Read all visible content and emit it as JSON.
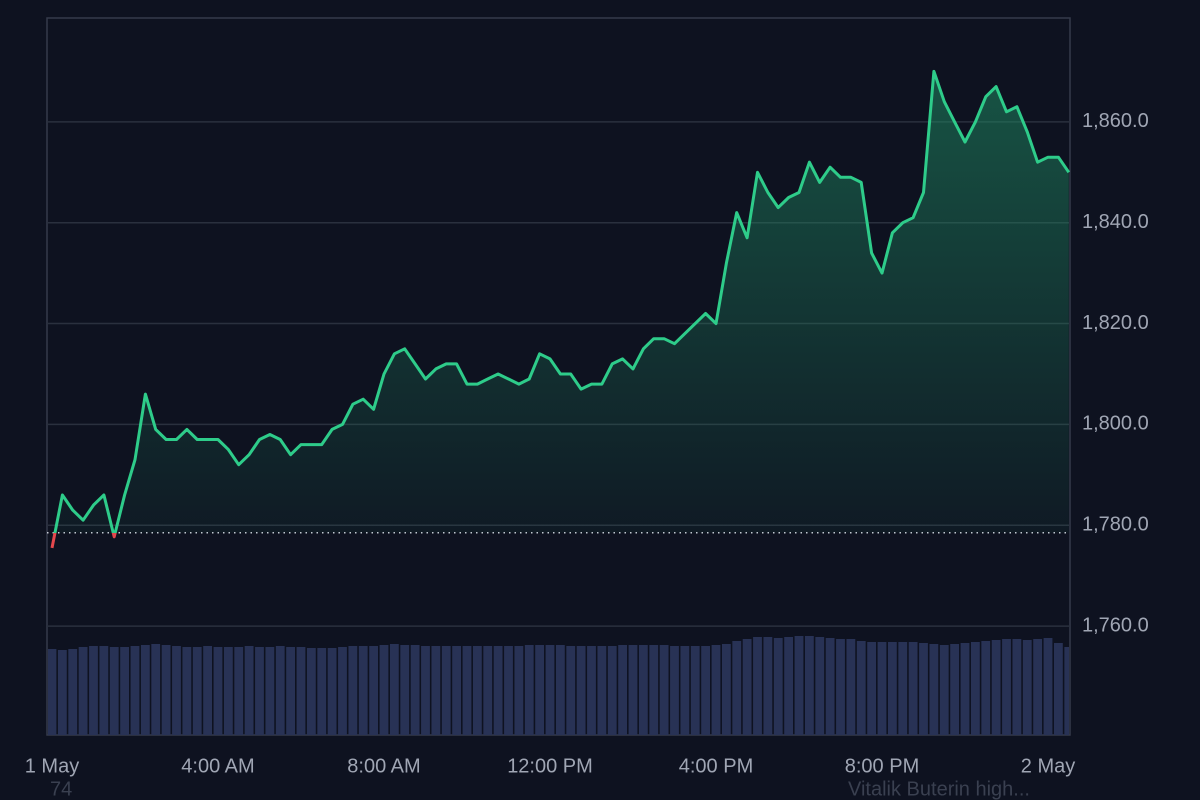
{
  "chart_data": {
    "type": "line",
    "color": "#2ecc8a",
    "down_color": "#e5484d",
    "baseline": 1778.5,
    "xlim": [
      -0.12,
      24.53
    ],
    "ylim": [
      1738.4,
      1880.6
    ],
    "yticks": [
      {
        "value": 1760,
        "label": "1,760.0"
      },
      {
        "value": 1780,
        "label": "1,780.0"
      },
      {
        "value": 1800,
        "label": "1,800.0"
      },
      {
        "value": 1820,
        "label": "1,820.0"
      },
      {
        "value": 1840,
        "label": "1,840.0"
      },
      {
        "value": 1860,
        "label": "1,860.0"
      }
    ],
    "xticks": [
      {
        "value": 0,
        "label": "1 May"
      },
      {
        "value": 4,
        "label": "4:00 AM"
      },
      {
        "value": 8,
        "label": "8:00 AM"
      },
      {
        "value": 12,
        "label": "12:00 PM"
      },
      {
        "value": 16,
        "label": "4:00 PM"
      },
      {
        "value": 20,
        "label": "8:00 PM"
      },
      {
        "value": 24,
        "label": "2 May"
      }
    ],
    "grid": true,
    "x": [
      0,
      0.25,
      0.5,
      0.75,
      1,
      1.25,
      1.5,
      1.75,
      2,
      2.25,
      2.5,
      2.75,
      3,
      3.25,
      3.5,
      3.75,
      4,
      4.25,
      4.5,
      4.75,
      5,
      5.25,
      5.5,
      5.75,
      6,
      6.25,
      6.5,
      6.75,
      7,
      7.25,
      7.5,
      7.75,
      8,
      8.25,
      8.5,
      8.75,
      9,
      9.25,
      9.5,
      9.75,
      10,
      10.25,
      10.5,
      10.75,
      11,
      11.25,
      11.5,
      11.75,
      12,
      12.25,
      12.5,
      12.75,
      13,
      13.25,
      13.5,
      13.75,
      14,
      14.25,
      14.5,
      14.75,
      15,
      15.25,
      15.5,
      15.75,
      16,
      16.25,
      16.5,
      16.75,
      17,
      17.25,
      17.5,
      17.75,
      18,
      18.25,
      18.5,
      18.75,
      19,
      19.25,
      19.5,
      19.75,
      20,
      20.25,
      20.5,
      20.75,
      21,
      21.25,
      21.5,
      21.75,
      22,
      22.25,
      22.5,
      22.75,
      23,
      23.25,
      23.5,
      23.75,
      24,
      24.25,
      24.5
    ],
    "values": [
      1775.5,
      1786,
      1783,
      1781,
      1784,
      1786,
      1777.7,
      1786,
      1793,
      1806,
      1799,
      1797,
      1797,
      1799,
      1797,
      1797,
      1797,
      1795,
      1792,
      1794,
      1797,
      1798,
      1797,
      1794,
      1796,
      1796,
      1796,
      1799,
      1800,
      1804,
      1805,
      1803,
      1810,
      1814,
      1815,
      1812,
      1809,
      1811,
      1812,
      1812,
      1808,
      1808,
      1809,
      1810,
      1809,
      1808,
      1809,
      1814,
      1813,
      1810,
      1810,
      1807,
      1808,
      1808,
      1812,
      1813,
      1811,
      1815,
      1817,
      1817,
      1816,
      1818,
      1820,
      1822,
      1820,
      1832,
      1842,
      1837,
      1850,
      1846,
      1843,
      1845,
      1846,
      1852,
      1848,
      1851,
      1849,
      1849,
      1848,
      1834,
      1830,
      1838,
      1840,
      1841,
      1846,
      1870,
      1864,
      1860,
      1856,
      1860,
      1865,
      1867,
      1862,
      1863,
      1858,
      1852,
      1853,
      1853,
      1850
    ],
    "volume_color": "#283255",
    "volume": [
      86,
      85,
      86,
      88,
      89,
      89,
      88,
      88,
      89,
      90,
      91,
      90,
      89,
      88,
      88,
      89,
      88,
      88,
      88,
      89,
      88,
      88,
      89,
      88,
      88,
      87,
      87,
      87,
      88,
      89,
      89,
      89,
      90,
      91,
      90,
      90,
      89,
      89,
      89,
      89,
      89,
      89,
      89,
      89,
      89,
      89,
      90,
      90,
      90,
      90,
      89,
      89,
      89,
      89,
      89,
      90,
      90,
      90,
      90,
      90,
      89,
      89,
      89,
      89,
      90,
      91,
      94,
      96,
      98,
      98,
      97,
      98,
      99,
      99,
      98,
      97,
      96,
      96,
      94,
      93,
      93,
      93,
      93,
      93,
      92,
      91,
      90,
      91,
      92,
      93,
      94,
      95,
      96,
      96,
      95,
      96,
      97,
      92,
      88
    ],
    "footer_texts": [
      "74",
      "Vitalik Buterin high..."
    ]
  }
}
